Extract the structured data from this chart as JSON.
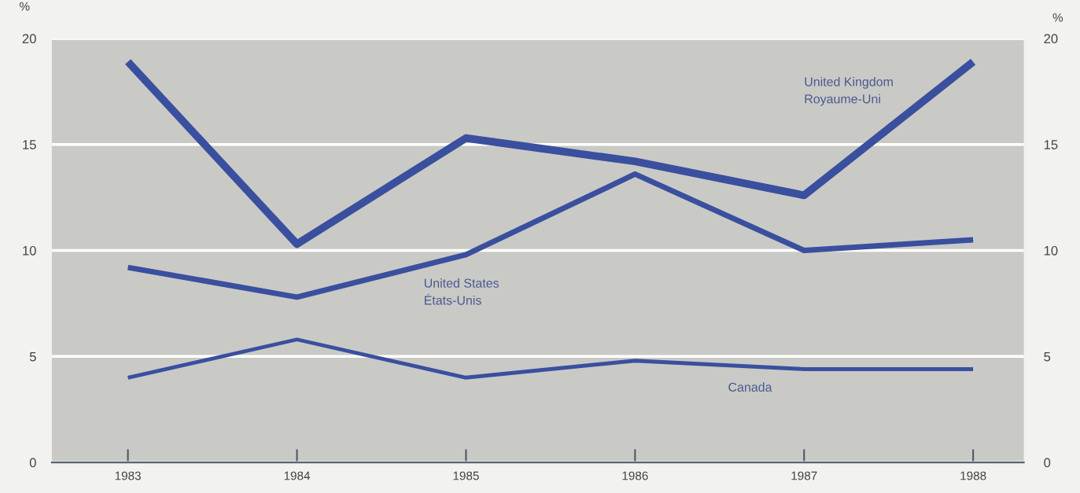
{
  "chart_data": {
    "type": "line",
    "ylabel": "%",
    "y2label": "%",
    "categories": [
      "1983",
      "1984",
      "1985",
      "1986",
      "1987",
      "1988"
    ],
    "series": [
      {
        "name": "United Kingdom\nRoyaume-Uni",
        "color": "#3a4f9e",
        "values": [
          18.9,
          10.3,
          15.3,
          14.2,
          12.6,
          18.9
        ]
      },
      {
        "name": "United States\nÉtats-Unis",
        "color": "#3a4f9e",
        "values": [
          9.2,
          7.8,
          9.8,
          13.6,
          10.0,
          10.5
        ]
      },
      {
        "name": "Canada",
        "color": "#3a4f9e",
        "values": [
          4.0,
          5.8,
          4.0,
          4.8,
          4.4,
          4.4
        ]
      }
    ],
    "ylim": [
      0,
      20
    ],
    "yticks": [
      0,
      5,
      10,
      15,
      20
    ],
    "y2lim": [
      0,
      20
    ],
    "y2ticks": [
      0,
      5,
      10,
      15,
      20
    ],
    "grid": "y",
    "marker": "none",
    "line_style": "solid"
  }
}
